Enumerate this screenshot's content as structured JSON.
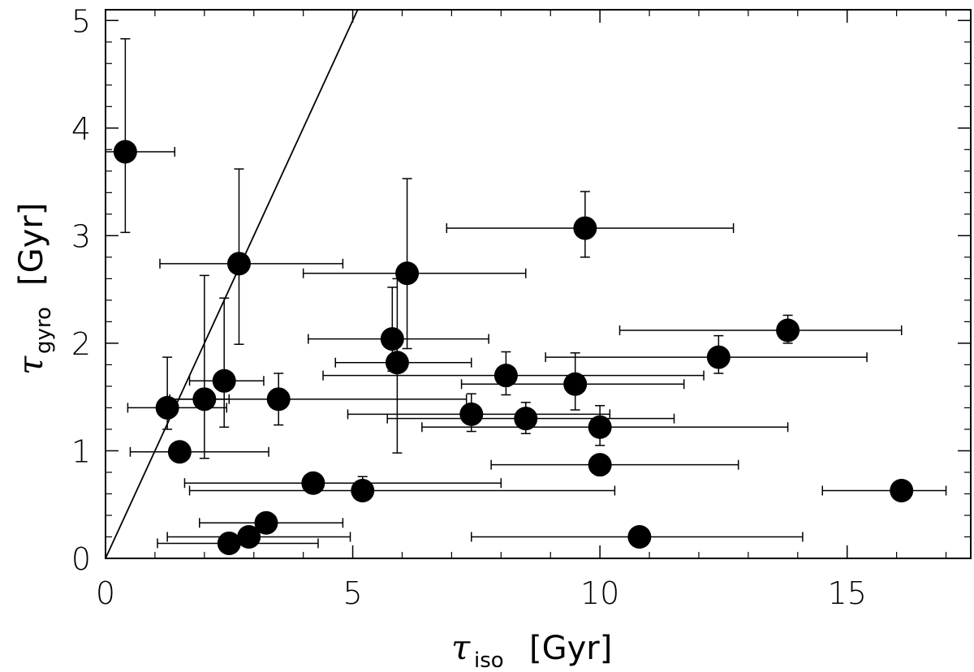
{
  "chart_data": {
    "type": "scatter",
    "xlim": [
      0,
      17.5
    ],
    "ylim": [
      0,
      5.1
    ],
    "x_ticks": [
      0,
      5,
      10,
      15
    ],
    "y_ticks": [
      0,
      1,
      2,
      3,
      4,
      5
    ],
    "x_tick_labels": [
      "0",
      "5",
      "10",
      "15"
    ],
    "y_tick_labels": [
      "0",
      "1",
      "2",
      "3",
      "4",
      "5"
    ],
    "xlabel": {
      "symbol": "τ",
      "subscript": "iso",
      "unit": "[Gyr]"
    },
    "ylabel": {
      "symbol": "τ",
      "subscript": "gyro",
      "unit": "[Gyr]"
    },
    "reference_line": {
      "slope": 1,
      "intercept": 0
    },
    "points": [
      {
        "x": 0.4,
        "y": 3.78,
        "xerr": [
          0.4,
          1.0
        ],
        "yerr": [
          0.75,
          1.05
        ]
      },
      {
        "x": 2.7,
        "y": 2.74,
        "xerr": [
          1.6,
          2.1
        ],
        "yerr": [
          0.75,
          0.88
        ]
      },
      {
        "x": 9.7,
        "y": 3.07,
        "xerr": [
          2.8,
          3.0
        ],
        "yerr": [
          0.27,
          0.34
        ]
      },
      {
        "x": 6.1,
        "y": 2.65,
        "xerr": [
          2.1,
          2.4
        ],
        "yerr": [
          0.7,
          0.88
        ]
      },
      {
        "x": 5.8,
        "y": 2.04,
        "xerr": [
          1.7,
          1.95
        ],
        "yerr": [
          0.3,
          0.48
        ]
      },
      {
        "x": 5.9,
        "y": 1.82,
        "xerr": [
          1.25,
          1.5
        ],
        "yerr": [
          0.84,
          0.78
        ]
      },
      {
        "x": 13.8,
        "y": 2.12,
        "xerr": [
          3.4,
          2.3
        ],
        "yerr": [
          0.12,
          0.14
        ]
      },
      {
        "x": 12.4,
        "y": 1.87,
        "xerr": [
          3.5,
          3.0
        ],
        "yerr": [
          0.15,
          0.2
        ]
      },
      {
        "x": 8.1,
        "y": 1.7,
        "xerr": [
          3.7,
          4.0
        ],
        "yerr": [
          0.18,
          0.22
        ]
      },
      {
        "x": 9.5,
        "y": 1.62,
        "xerr": [
          2.3,
          2.2
        ],
        "yerr": [
          0.24,
          0.29
        ]
      },
      {
        "x": 2.4,
        "y": 1.65,
        "xerr": [
          0.7,
          0.8
        ],
        "yerr": [
          0.43,
          0.77
        ]
      },
      {
        "x": 1.25,
        "y": 1.4,
        "xerr": [
          0.8,
          1.2
        ],
        "yerr": [
          0.2,
          0.47
        ]
      },
      {
        "x": 2.0,
        "y": 1.48,
        "xerr": [
          0.75,
          0.5
        ],
        "yerr": [
          0.55,
          1.15
        ]
      },
      {
        "x": 3.5,
        "y": 1.48,
        "xerr": [
          2.2,
          3.8
        ],
        "yerr": [
          0.24,
          0.24
        ]
      },
      {
        "x": 7.4,
        "y": 1.34,
        "xerr": [
          2.5,
          2.8
        ],
        "yerr": [
          0.16,
          0.19
        ]
      },
      {
        "x": 8.5,
        "y": 1.3,
        "xerr": [
          2.8,
          3.0
        ],
        "yerr": [
          0.14,
          0.15
        ]
      },
      {
        "x": 10.0,
        "y": 1.22,
        "xerr": [
          3.6,
          3.8
        ],
        "yerr": [
          0.17,
          0.2
        ]
      },
      {
        "x": 1.5,
        "y": 0.99,
        "xerr": [
          1.0,
          1.8
        ],
        "yerr": [
          0.0,
          0.0
        ]
      },
      {
        "x": 10.0,
        "y": 0.87,
        "xerr": [
          2.2,
          2.8
        ],
        "yerr": [
          0.05,
          0.06
        ]
      },
      {
        "x": 4.2,
        "y": 0.7,
        "xerr": [
          2.6,
          3.8
        ],
        "yerr": [
          0.04,
          0.04
        ]
      },
      {
        "x": 5.2,
        "y": 0.63,
        "xerr": [
          3.5,
          5.1
        ],
        "yerr": [
          0.06,
          0.13
        ]
      },
      {
        "x": 16.1,
        "y": 0.63,
        "xerr": [
          1.6,
          0.9
        ],
        "yerr": [
          0.06,
          0.06
        ]
      },
      {
        "x": 3.25,
        "y": 0.33,
        "xerr": [
          1.35,
          1.55
        ],
        "yerr": [
          0.0,
          0.0
        ]
      },
      {
        "x": 2.9,
        "y": 0.2,
        "xerr": [
          1.65,
          2.05
        ],
        "yerr": [
          0.0,
          0.0
        ]
      },
      {
        "x": 2.5,
        "y": 0.14,
        "xerr": [
          1.45,
          1.8
        ],
        "yerr": [
          0.0,
          0.0
        ]
      },
      {
        "x": 10.8,
        "y": 0.2,
        "xerr": [
          3.4,
          3.3
        ],
        "yerr": [
          0.0,
          0.0
        ]
      }
    ]
  }
}
